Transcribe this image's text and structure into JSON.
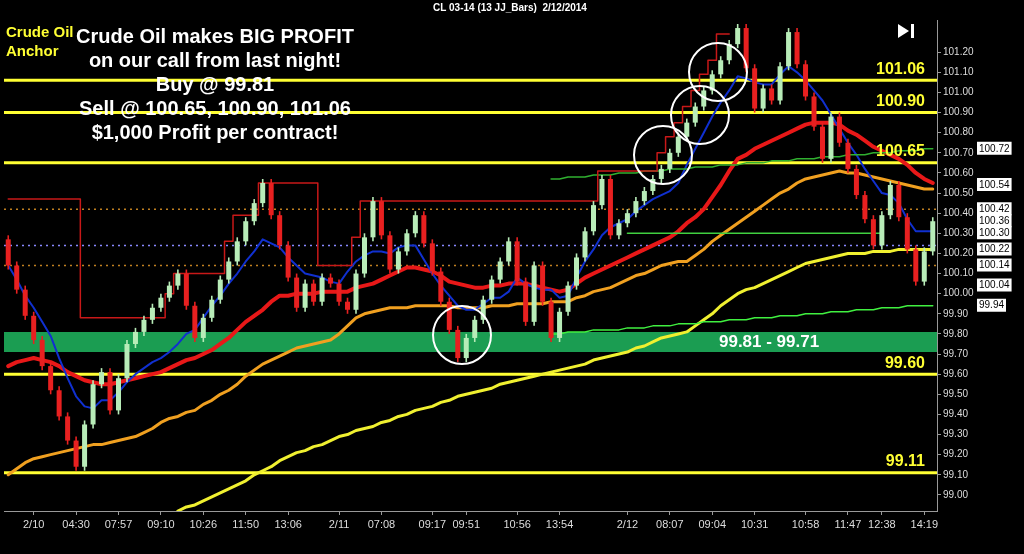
{
  "chart_data": {
    "type": "candlestick",
    "title": "CL 03-14 (13 JJ_Bars)  2/12/2014",
    "categories": [
      null,
      null,
      null,
      "2/10",
      null,
      null,
      null,
      null,
      "04:30",
      null,
      null,
      null,
      null,
      "07:57",
      null,
      null,
      null,
      null,
      "09:10",
      null,
      null,
      null,
      null,
      "10:26",
      null,
      null,
      null,
      null,
      "11:50",
      null,
      null,
      null,
      null,
      "13:06",
      null,
      null,
      null,
      null,
      null,
      "2/11",
      null,
      null,
      null,
      null,
      "07:08",
      null,
      null,
      null,
      null,
      null,
      "09:17",
      null,
      null,
      null,
      "09:51",
      null,
      null,
      null,
      null,
      null,
      "10:56",
      null,
      null,
      null,
      null,
      "13:54",
      null,
      null,
      null,
      null,
      null,
      null,
      null,
      "2/12",
      null,
      null,
      null,
      null,
      "08:07",
      null,
      null,
      null,
      null,
      "09:04",
      null,
      null,
      null,
      null,
      "10:31",
      null,
      null,
      null,
      null,
      null,
      "10:58",
      null,
      null,
      null,
      null,
      "11:47",
      null,
      null,
      null,
      "12:38",
      null,
      null,
      null,
      null,
      "14:19",
      null
    ],
    "ohlc": [
      [
        100.27,
        100.29,
        100.12,
        100.14
      ],
      [
        100.14,
        100.16,
        100.0,
        100.02
      ],
      [
        100.02,
        100.04,
        99.87,
        99.89
      ],
      [
        99.89,
        99.91,
        99.75,
        99.77
      ],
      [
        99.77,
        99.79,
        99.62,
        99.64
      ],
      [
        99.64,
        99.66,
        99.5,
        99.52
      ],
      [
        99.52,
        99.54,
        99.37,
        99.39
      ],
      [
        99.39,
        99.41,
        99.25,
        99.27
      ],
      [
        99.27,
        99.29,
        99.12,
        99.14
      ],
      [
        99.14,
        99.37,
        99.12,
        99.35
      ],
      [
        99.35,
        99.57,
        99.33,
        99.55
      ],
      [
        99.55,
        99.63,
        99.53,
        99.61
      ],
      [
        99.61,
        99.63,
        99.4,
        99.42
      ],
      [
        99.42,
        99.6,
        99.4,
        99.58
      ],
      [
        99.58,
        99.77,
        99.56,
        99.75
      ],
      [
        99.75,
        99.83,
        99.73,
        99.81
      ],
      [
        99.81,
        99.89,
        99.79,
        99.87
      ],
      [
        99.87,
        99.95,
        99.85,
        99.93
      ],
      [
        99.93,
        100.0,
        99.91,
        99.98
      ],
      [
        99.98,
        100.06,
        99.96,
        100.04
      ],
      [
        100.04,
        100.12,
        100.02,
        100.1
      ],
      [
        100.1,
        100.12,
        99.92,
        99.94
      ],
      [
        99.94,
        99.96,
        99.76,
        99.78
      ],
      [
        99.78,
        99.9,
        99.76,
        99.88
      ],
      [
        99.88,
        99.99,
        99.86,
        99.97
      ],
      [
        99.97,
        100.09,
        99.95,
        100.07
      ],
      [
        100.07,
        100.18,
        100.05,
        100.16
      ],
      [
        100.16,
        100.28,
        100.14,
        100.26
      ],
      [
        100.26,
        100.38,
        100.24,
        100.36
      ],
      [
        100.36,
        100.47,
        100.34,
        100.45
      ],
      [
        100.45,
        100.57,
        100.43,
        100.55
      ],
      [
        100.55,
        100.57,
        100.37,
        100.39
      ],
      [
        100.39,
        100.41,
        100.22,
        100.24
      ],
      [
        100.24,
        100.26,
        100.06,
        100.08
      ],
      [
        100.08,
        100.1,
        99.91,
        99.93
      ],
      [
        99.93,
        100.07,
        99.91,
        100.05
      ],
      [
        100.05,
        100.07,
        99.94,
        99.96
      ],
      [
        99.96,
        100.1,
        99.94,
        100.08
      ],
      [
        100.08,
        100.1,
        100.03,
        100.05
      ],
      [
        100.05,
        100.07,
        99.94,
        99.96
      ],
      [
        99.96,
        99.98,
        99.9,
        99.92
      ],
      [
        99.92,
        100.12,
        99.9,
        100.1
      ],
      [
        100.1,
        100.3,
        100.08,
        100.28
      ],
      [
        100.28,
        100.48,
        100.26,
        100.46
      ],
      [
        100.46,
        100.48,
        100.27,
        100.29
      ],
      [
        100.29,
        100.31,
        100.1,
        100.12
      ],
      [
        100.12,
        100.23,
        100.1,
        100.21
      ],
      [
        100.21,
        100.32,
        100.19,
        100.3
      ],
      [
        100.3,
        100.41,
        100.28,
        100.39
      ],
      [
        100.39,
        100.41,
        100.23,
        100.25
      ],
      [
        100.25,
        100.27,
        100.09,
        100.11
      ],
      [
        100.11,
        100.13,
        99.94,
        99.96
      ],
      [
        99.96,
        99.98,
        99.8,
        99.82
      ],
      [
        99.82,
        99.84,
        99.66,
        99.68
      ],
      [
        99.68,
        99.8,
        99.66,
        99.78
      ],
      [
        99.78,
        99.89,
        99.76,
        99.87
      ],
      [
        99.87,
        99.99,
        99.85,
        99.97
      ],
      [
        99.97,
        100.09,
        99.95,
        100.07
      ],
      [
        100.07,
        100.18,
        100.05,
        100.16
      ],
      [
        100.16,
        100.28,
        100.14,
        100.26
      ],
      [
        100.26,
        100.28,
        100.04,
        100.06
      ],
      [
        100.06,
        100.08,
        99.84,
        99.86
      ],
      [
        99.86,
        100.16,
        99.84,
        100.14
      ],
      [
        100.14,
        100.16,
        99.94,
        99.96
      ],
      [
        99.96,
        99.98,
        99.76,
        99.78
      ],
      [
        99.78,
        99.93,
        99.76,
        99.91
      ],
      [
        99.91,
        100.06,
        99.89,
        100.04
      ],
      [
        100.04,
        100.2,
        100.02,
        100.18
      ],
      [
        100.18,
        100.33,
        100.16,
        100.31
      ],
      [
        100.31,
        100.46,
        100.29,
        100.44
      ],
      [
        100.44,
        100.59,
        100.42,
        100.57
      ],
      [
        100.57,
        100.59,
        100.27,
        100.29
      ],
      [
        100.29,
        100.37,
        100.27,
        100.35
      ],
      [
        100.35,
        100.42,
        100.33,
        100.4
      ],
      [
        100.4,
        100.48,
        100.38,
        100.46
      ],
      [
        100.46,
        100.53,
        100.44,
        100.51
      ],
      [
        100.51,
        100.59,
        100.49,
        100.57
      ],
      [
        100.57,
        100.64,
        100.55,
        100.62
      ],
      [
        100.62,
        100.72,
        100.6,
        100.7
      ],
      [
        100.7,
        100.8,
        100.68,
        100.78
      ],
      [
        100.78,
        100.87,
        100.76,
        100.85
      ],
      [
        100.85,
        100.95,
        100.83,
        100.93
      ],
      [
        100.93,
        101.03,
        100.91,
        101.01
      ],
      [
        101.01,
        101.11,
        100.99,
        101.09
      ],
      [
        101.09,
        101.18,
        101.07,
        101.16
      ],
      [
        101.16,
        101.26,
        101.14,
        101.24
      ],
      [
        101.24,
        101.34,
        101.22,
        101.32
      ],
      [
        101.32,
        101.34,
        101.1,
        101.12
      ],
      [
        101.12,
        101.14,
        100.9,
        100.92
      ],
      [
        100.92,
        101.04,
        100.9,
        101.02
      ],
      [
        101.02,
        101.04,
        100.94,
        100.96
      ],
      [
        100.96,
        101.15,
        100.94,
        101.13
      ],
      [
        101.13,
        101.32,
        101.11,
        101.3
      ],
      [
        101.3,
        101.32,
        101.12,
        101.14
      ],
      [
        101.14,
        101.16,
        100.96,
        100.98
      ],
      [
        100.98,
        101.0,
        100.81,
        100.83
      ],
      [
        100.83,
        100.85,
        100.65,
        100.67
      ],
      [
        100.67,
        100.9,
        100.65,
        100.88
      ],
      [
        100.88,
        100.9,
        100.73,
        100.75
      ],
      [
        100.75,
        100.77,
        100.6,
        100.62
      ],
      [
        100.62,
        100.64,
        100.47,
        100.49
      ],
      [
        100.49,
        100.51,
        100.35,
        100.37
      ],
      [
        100.37,
        100.39,
        100.22,
        100.24
      ],
      [
        100.24,
        100.41,
        100.22,
        100.39
      ],
      [
        100.39,
        100.56,
        100.37,
        100.54
      ],
      [
        100.54,
        100.56,
        100.36,
        100.38
      ],
      [
        100.38,
        100.4,
        100.2,
        100.22
      ],
      [
        100.22,
        100.24,
        100.04,
        100.06
      ],
      [
        100.06,
        100.23,
        100.04,
        100.21
      ],
      [
        100.21,
        100.38,
        100.19,
        100.36
      ]
    ],
    "colors": [
      "#e82020",
      "#e82020",
      "#e82020",
      "#e82020",
      "#e82020",
      "#e82020",
      "#e82020",
      "#e82020",
      "#e82020",
      "#b8ecb8",
      "#b8ecb8",
      "#b8ecb8",
      "#e82020",
      "#b8ecb8",
      "#b8ecb8",
      "#b8ecb8",
      "#b8ecb8",
      "#b8ecb8",
      "#b8ecb8",
      "#b8ecb8",
      "#b8ecb8",
      "#e82020",
      "#e82020",
      "#b8ecb8",
      "#b8ecb8",
      "#b8ecb8",
      "#b8ecb8",
      "#b8ecb8",
      "#b8ecb8",
      "#b8ecb8",
      "#b8ecb8",
      "#e82020",
      "#e82020",
      "#e82020",
      "#e82020",
      "#b8ecb8",
      "#e82020",
      "#b8ecb8",
      "#e82020",
      "#e82020",
      "#e82020",
      "#b8ecb8",
      "#b8ecb8",
      "#b8ecb8",
      "#e82020",
      "#e82020",
      "#b8ecb8",
      "#b8ecb8",
      "#b8ecb8",
      "#e82020",
      "#e82020",
      "#e82020",
      "#e82020",
      "#e82020",
      "#b8ecb8",
      "#b8ecb8",
      "#b8ecb8",
      "#b8ecb8",
      "#b8ecb8",
      "#b8ecb8",
      "#e82020",
      "#e82020",
      "#b8ecb8",
      "#e82020",
      "#e82020",
      "#b8ecb8",
      "#b8ecb8",
      "#b8ecb8",
      "#b8ecb8",
      "#b8ecb8",
      "#b8ecb8",
      "#e82020",
      "#b8ecb8",
      "#b8ecb8",
      "#b8ecb8",
      "#b8ecb8",
      "#b8ecb8",
      "#b8ecb8",
      "#b8ecb8",
      "#b8ecb8",
      "#b8ecb8",
      "#b8ecb8",
      "#b8ecb8",
      "#b8ecb8",
      "#b8ecb8",
      "#b8ecb8",
      "#b8ecb8",
      "#e82020",
      "#e82020",
      "#b8ecb8",
      "#e82020",
      "#b8ecb8",
      "#b8ecb8",
      "#e82020",
      "#e82020",
      "#e82020",
      "#e82020",
      "#b8ecb8",
      "#e82020",
      "#e82020",
      "#e82020",
      "#e82020",
      "#e82020",
      "#b8ecb8",
      "#b8ecb8",
      "#e82020",
      "#e82020",
      "#e82020",
      "#b8ecb8",
      "#b8ecb8"
    ],
    "series": [
      {
        "type": "line",
        "color": "#1030d0",
        "values": [
          100.14,
          100.07,
          99.99,
          99.93,
          99.86,
          99.79,
          99.68,
          99.58,
          99.49,
          99.44,
          99.43,
          99.47,
          99.47,
          99.51,
          99.56,
          99.6,
          99.63,
          99.66,
          99.68,
          99.71,
          99.75,
          99.8,
          99.82,
          99.88,
          99.94,
          99.99,
          100.05,
          100.1,
          100.16,
          100.21,
          100.27,
          100.25,
          100.23,
          100.18,
          100.14,
          100.1,
          100.09,
          100.08,
          100.06,
          100.05,
          100.11,
          100.16,
          100.19,
          100.21,
          100.21,
          100.2,
          100.23,
          100.24,
          100.24,
          100.17,
          100.1,
          100.04,
          99.99,
          99.94,
          99.92,
          99.92,
          99.95,
          99.98,
          99.98,
          100.01,
          100.08,
          100.05,
          100.03,
          100.02,
          100.02,
          99.98,
          99.99,
          100.08,
          100.16,
          100.22,
          100.29,
          100.33,
          100.35,
          100.37,
          100.41,
          100.44,
          100.47,
          100.49,
          100.51,
          100.55,
          100.64,
          100.72,
          100.8,
          100.88,
          100.95,
          101.01,
          101.08,
          101.07,
          101.05,
          101.04,
          101.04,
          101.09,
          101.13,
          101.1,
          101.06,
          101.01,
          100.96,
          100.89,
          100.82,
          100.75,
          100.69,
          100.62,
          100.56,
          100.5,
          100.49,
          100.45,
          100.37,
          100.31,
          100.31,
          100.31
        ]
      },
      {
        "type": "line",
        "color": "#e81818",
        "values": [
          99.64,
          99.66,
          99.67,
          99.68,
          99.67,
          99.66,
          99.64,
          99.61,
          99.59,
          99.57,
          99.56,
          99.55,
          99.55,
          99.56,
          99.57,
          99.58,
          99.59,
          99.6,
          99.61,
          99.63,
          99.65,
          99.67,
          99.68,
          99.7,
          99.72,
          99.75,
          99.78,
          99.82,
          99.86,
          99.89,
          99.92,
          99.96,
          99.99,
          99.99,
          100.0,
          100.0,
          100.0,
          100.01,
          100.01,
          100.01,
          100.01,
          100.03,
          100.04,
          100.05,
          100.07,
          100.09,
          100.11,
          100.13,
          100.13,
          100.12,
          100.11,
          100.09,
          100.06,
          100.05,
          100.04,
          100.03,
          100.03,
          100.04,
          100.04,
          100.05,
          100.05,
          100.05,
          100.04,
          100.03,
          100.02,
          100.01,
          100.02,
          100.05,
          100.08,
          100.1,
          100.12,
          100.14,
          100.16,
          100.18,
          100.2,
          100.22,
          100.24,
          100.26,
          100.28,
          100.31,
          100.35,
          100.38,
          100.42,
          100.48,
          100.54,
          100.61,
          100.67,
          100.69,
          100.72,
          100.74,
          100.76,
          100.78,
          100.8,
          100.82,
          100.84,
          100.85,
          100.85,
          100.85,
          100.84,
          100.81,
          100.79,
          100.76,
          100.73,
          100.71,
          100.69,
          100.67,
          100.64,
          100.6,
          100.57,
          100.55
        ]
      },
      {
        "type": "line",
        "color": "#f0a020",
        "values": [
          99.1,
          99.13,
          99.16,
          99.18,
          99.19,
          99.2,
          99.21,
          99.22,
          99.23,
          99.24,
          99.25,
          99.25,
          99.26,
          99.27,
          99.28,
          99.29,
          99.31,
          99.33,
          99.36,
          99.38,
          99.39,
          99.41,
          99.42,
          99.45,
          99.47,
          99.5,
          99.52,
          99.55,
          99.59,
          99.62,
          99.65,
          99.67,
          99.69,
          99.71,
          99.73,
          99.74,
          99.75,
          99.76,
          99.77,
          99.8,
          99.84,
          99.88,
          99.9,
          99.91,
          99.92,
          99.93,
          99.93,
          99.93,
          99.94,
          99.94,
          99.94,
          99.94,
          99.94,
          99.93,
          99.93,
          99.93,
          99.93,
          99.94,
          99.94,
          99.94,
          99.95,
          99.95,
          99.95,
          99.95,
          99.96,
          99.96,
          99.96,
          99.98,
          99.99,
          100.01,
          100.02,
          100.03,
          100.05,
          100.07,
          100.09,
          100.1,
          100.12,
          100.14,
          100.15,
          100.16,
          100.16,
          100.19,
          100.22,
          100.26,
          100.29,
          100.32,
          100.35,
          100.38,
          100.41,
          100.44,
          100.47,
          100.5,
          100.52,
          100.55,
          100.57,
          100.58,
          100.59,
          100.6,
          100.61,
          100.6,
          100.6,
          100.59,
          100.58,
          100.57,
          100.56,
          100.55,
          100.54,
          100.53,
          100.52,
          100.52
        ]
      },
      {
        "type": "line",
        "color": "#f0f030",
        "values": [
          null,
          null,
          null,
          null,
          null,
          null,
          null,
          null,
          null,
          null,
          null,
          null,
          null,
          null,
          null,
          null,
          null,
          null,
          null,
          null,
          98.92,
          98.94,
          98.95,
          98.97,
          98.99,
          99.01,
          99.03,
          99.05,
          99.07,
          99.1,
          99.12,
          99.14,
          99.17,
          99.19,
          99.21,
          99.22,
          99.24,
          99.25,
          99.27,
          99.29,
          99.3,
          99.32,
          99.33,
          99.34,
          99.36,
          99.37,
          99.39,
          99.4,
          99.42,
          99.43,
          99.44,
          99.46,
          99.47,
          99.49,
          99.5,
          99.51,
          99.52,
          99.53,
          99.55,
          99.56,
          99.57,
          99.58,
          99.59,
          99.6,
          99.61,
          99.62,
          99.63,
          99.64,
          99.65,
          99.67,
          99.68,
          99.69,
          99.7,
          99.71,
          99.73,
          99.74,
          99.76,
          99.78,
          99.79,
          99.8,
          99.81,
          99.84,
          99.87,
          99.9,
          99.94,
          99.97,
          100.0,
          100.02,
          100.03,
          100.05,
          100.07,
          100.09,
          100.11,
          100.13,
          100.15,
          100.16,
          100.17,
          100.18,
          100.19,
          100.2,
          100.2,
          100.2,
          100.21,
          100.21,
          100.21,
          100.22,
          100.22,
          100.22,
          100.22,
          100.22
        ]
      },
      {
        "type": "step",
        "color": "#c81818",
        "values": [
          100.47,
          100.47,
          100.47,
          100.47,
          100.47,
          100.47,
          100.47,
          100.47,
          100.47,
          99.88,
          99.88,
          99.88,
          99.88,
          99.88,
          99.88,
          99.88,
          99.88,
          99.88,
          99.88,
          100.0,
          100.1,
          100.1,
          100.1,
          100.1,
          100.1,
          100.1,
          100.26,
          100.39,
          100.39,
          100.39,
          100.55,
          100.55,
          100.55,
          100.55,
          100.55,
          100.55,
          100.55,
          100.14,
          100.14,
          100.14,
          100.14,
          100.28,
          100.46,
          100.46,
          100.46,
          100.46,
          100.46,
          100.46,
          100.46,
          100.46,
          100.46,
          100.46,
          100.46,
          100.46,
          100.46,
          100.46,
          100.46,
          100.46,
          100.46,
          100.46,
          100.46,
          100.46,
          100.46,
          100.46,
          100.46,
          100.46,
          100.46,
          100.46,
          100.46,
          100.46,
          100.61,
          100.61,
          100.61,
          100.61,
          100.61,
          100.61,
          100.61,
          100.7,
          100.78,
          100.85,
          100.93,
          101.01,
          101.09,
          101.16,
          101.29,
          101.29,
          null,
          null,
          null,
          null,
          null,
          null,
          null,
          null,
          null,
          null,
          null,
          null,
          null,
          null,
          null,
          null,
          null,
          null,
          null,
          null,
          null,
          null,
          null,
          null
        ]
      },
      {
        "type": "line",
        "color": "#30b030",
        "values": [
          null,
          null,
          null,
          null,
          null,
          null,
          null,
          null,
          null,
          null,
          null,
          null,
          null,
          null,
          null,
          null,
          null,
          null,
          null,
          null,
          null,
          null,
          null,
          null,
          null,
          null,
          null,
          null,
          null,
          null,
          null,
          null,
          null,
          null,
          null,
          null,
          null,
          null,
          null,
          null,
          null,
          null,
          null,
          null,
          null,
          null,
          null,
          null,
          null,
          null,
          null,
          null,
          null,
          null,
          null,
          null,
          null,
          null,
          null,
          null,
          null,
          null,
          null,
          null,
          100.57,
          100.57,
          100.58,
          100.58,
          100.58,
          100.59,
          100.59,
          100.59,
          100.6,
          100.6,
          100.6,
          100.61,
          100.61,
          100.61,
          100.62,
          100.62,
          100.62,
          100.63,
          100.63,
          100.63,
          100.64,
          100.64,
          100.64,
          100.65,
          100.65,
          100.65,
          100.66,
          100.66,
          100.66,
          100.67,
          100.67,
          100.67,
          100.68,
          100.68,
          100.68,
          100.69,
          100.69,
          100.69,
          100.7,
          100.7,
          100.7,
          100.71,
          100.71,
          100.71,
          100.72,
          100.72
        ]
      },
      {
        "type": "line",
        "color": "#40f040",
        "values": [
          null,
          null,
          null,
          null,
          null,
          null,
          null,
          null,
          null,
          null,
          null,
          null,
          null,
          null,
          null,
          null,
          null,
          null,
          null,
          null,
          null,
          null,
          null,
          null,
          null,
          null,
          null,
          null,
          null,
          null,
          null,
          null,
          null,
          null,
          null,
          null,
          null,
          null,
          null,
          null,
          null,
          null,
          null,
          null,
          null,
          null,
          null,
          null,
          null,
          null,
          null,
          null,
          null,
          null,
          null,
          null,
          null,
          null,
          null,
          null,
          null,
          null,
          null,
          null,
          99.8,
          99.8,
          99.81,
          99.81,
          99.81,
          99.82,
          99.82,
          99.82,
          99.82,
          99.83,
          99.83,
          99.83,
          99.84,
          99.84,
          99.84,
          99.85,
          99.85,
          99.85,
          99.86,
          99.86,
          99.86,
          99.87,
          99.87,
          99.87,
          99.88,
          99.88,
          99.88,
          99.89,
          99.89,
          99.89,
          99.9,
          99.9,
          99.9,
          99.91,
          99.91,
          99.91,
          99.92,
          99.92,
          99.92,
          99.93,
          99.93,
          99.93,
          99.94,
          99.94,
          99.94,
          99.94
        ]
      },
      {
        "type": "line",
        "color": "#40d040",
        "values": [
          null,
          null,
          null,
          null,
          null,
          null,
          null,
          null,
          null,
          null,
          null,
          null,
          null,
          null,
          null,
          null,
          null,
          null,
          null,
          null,
          null,
          null,
          null,
          null,
          null,
          null,
          null,
          null,
          null,
          null,
          null,
          null,
          null,
          null,
          null,
          null,
          null,
          null,
          null,
          null,
          null,
          null,
          null,
          null,
          null,
          null,
          null,
          null,
          null,
          null,
          null,
          null,
          null,
          null,
          null,
          null,
          null,
          null,
          null,
          null,
          null,
          null,
          null,
          null,
          null,
          null,
          null,
          null,
          null,
          null,
          null,
          null,
          null,
          100.3,
          100.3,
          100.3,
          100.3,
          100.3,
          100.3,
          100.3,
          100.3,
          100.3,
          100.3,
          100.3,
          100.3,
          100.3,
          100.3,
          100.3,
          100.3,
          100.3,
          100.3,
          100.3,
          100.3,
          100.3,
          100.3,
          100.3,
          100.3,
          100.3,
          100.3,
          100.3,
          100.3,
          100.3,
          100.3,
          100.3,
          null,
          null,
          null,
          null,
          null,
          null
        ]
      }
    ],
    "ylim": [
      98.92,
      101.36
    ],
    "yticks": [
      {
        "value": 99,
        "label": "99.00"
      },
      {
        "value": 99.1,
        "label": "99.10"
      },
      {
        "value": 99.2,
        "label": "99.20"
      },
      {
        "value": 99.3,
        "label": "99.30"
      },
      {
        "value": 99.4,
        "label": "99.40"
      },
      {
        "value": 99.5,
        "label": "99.50"
      },
      {
        "value": 99.6,
        "label": "99.60"
      },
      {
        "value": 99.7,
        "label": "99.70"
      },
      {
        "value": 99.8,
        "label": "99.80"
      },
      {
        "value": 99.9,
        "label": "99.90"
      },
      {
        "value": 100,
        "label": "100.00"
      },
      {
        "value": 100.1,
        "label": "100.10"
      },
      {
        "value": 100.2,
        "label": "100.20"
      },
      {
        "value": 100.3,
        "label": "100.30"
      },
      {
        "value": 100.4,
        "label": "100.40"
      },
      {
        "value": 100.5,
        "label": "100.50"
      },
      {
        "value": 100.6,
        "label": "100.60"
      },
      {
        "value": 100.7,
        "label": "100.70"
      },
      {
        "value": 100.8,
        "label": "100.80"
      },
      {
        "value": 100.9,
        "label": "100.90"
      },
      {
        "value": 101,
        "label": "101.00"
      },
      {
        "value": 101.1,
        "label": "101.10"
      },
      {
        "value": 101.2,
        "label": "101.20"
      }
    ],
    "y2lim": [
      98.92,
      101.36
    ],
    "y2ticks": [
      {
        "value": 100.72,
        "label": "100.72"
      },
      {
        "value": 100.54,
        "label": "100.54"
      },
      {
        "value": 100.42,
        "label": "100.42"
      },
      {
        "value": 100.36,
        "label": "100.36"
      },
      {
        "value": 100.3,
        "label": "100.30"
      },
      {
        "value": 100.22,
        "label": "100.22"
      },
      {
        "value": 100.14,
        "label": "100.14"
      },
      {
        "value": 100.04,
        "label": "100.04"
      },
      {
        "value": 99.94,
        "label": "99.94"
      }
    ],
    "ref_lines": [
      {
        "axis": "y",
        "value": 101.06,
        "label": "101.06",
        "color": "#ffff33"
      },
      {
        "axis": "y",
        "value": 100.9,
        "label": "100.90",
        "color": "#ffff33"
      },
      {
        "axis": "y",
        "value": 100.65,
        "label": "100.65",
        "color": "#ffff33"
      },
      {
        "axis": "y",
        "value": 99.6,
        "label": "99.60",
        "color": "#ffff33"
      },
      {
        "axis": "y",
        "value": 99.11,
        "label": "99.11",
        "color": "#ffff33"
      },
      {
        "axis": "y",
        "value": 100.24,
        "color": "#8888ff",
        "line_style": "dotted"
      },
      {
        "axis": "y",
        "value": 100.42,
        "color": "#c08020",
        "line_style": "dotted"
      },
      {
        "axis": "y",
        "value": 100.14,
        "color": "#c08020",
        "line_style": "dotted"
      }
    ],
    "bands": [
      {
        "axis": "y",
        "from": 99.71,
        "to": 99.81,
        "label": "99.81 - 99.71",
        "color": "#22c466"
      }
    ],
    "annotations": [
      "Crude Oil Anchor",
      "Crude Oil makes BIG PROFIT\non our call from last night!\nBuy @ 99.81\nSell @ 100.65, 100.90, 101.06\n$1,000 Profit per contract!"
    ],
    "grid": false,
    "legend": false,
    "marker": "none",
    "line_style": "solid"
  }
}
